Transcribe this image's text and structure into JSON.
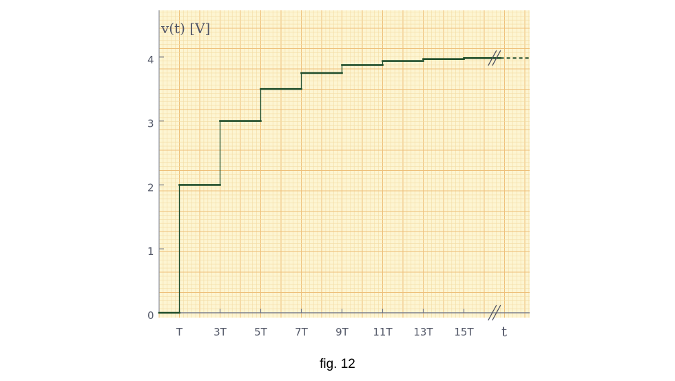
{
  "chart_data": {
    "type": "line",
    "step": true,
    "ylabel": "v(t) [V]",
    "xlabel": "t",
    "ylim": [
      0,
      4.6
    ],
    "xlim": [
      0,
      18.5
    ],
    "yticks": [
      {
        "value": 0,
        "label": "0"
      },
      {
        "value": 1,
        "label": "1"
      },
      {
        "value": 2,
        "label": "2"
      },
      {
        "value": 3,
        "label": "3"
      },
      {
        "value": 4,
        "label": "4"
      }
    ],
    "xticks": [
      {
        "value": 1,
        "label": "T"
      },
      {
        "value": 3,
        "label": "3T"
      },
      {
        "value": 5,
        "label": "5T"
      },
      {
        "value": 7,
        "label": "7T"
      },
      {
        "value": 9,
        "label": "9T"
      },
      {
        "value": 11,
        "label": "11T"
      },
      {
        "value": 13,
        "label": "13T"
      },
      {
        "value": 15,
        "label": "15T"
      }
    ],
    "series": [
      {
        "color": "#1f4d2b",
        "points": [
          {
            "t": 0,
            "v": 0
          },
          {
            "t": 1,
            "v": 0
          },
          {
            "t": 1,
            "v": 2
          },
          {
            "t": 3,
            "v": 2
          },
          {
            "t": 3,
            "v": 3
          },
          {
            "t": 5,
            "v": 3
          },
          {
            "t": 5,
            "v": 3.5
          },
          {
            "t": 7,
            "v": 3.5
          },
          {
            "t": 7,
            "v": 3.75
          },
          {
            "t": 9,
            "v": 3.75
          },
          {
            "t": 9,
            "v": 3.875
          },
          {
            "t": 11,
            "v": 3.875
          },
          {
            "t": 11,
            "v": 3.9375
          },
          {
            "t": 13,
            "v": 3.9375
          },
          {
            "t": 13,
            "v": 3.96875
          },
          {
            "t": 15,
            "v": 3.96875
          },
          {
            "t": 15,
            "v": 3.984
          },
          {
            "t": 16.8,
            "v": 3.984
          }
        ],
        "continuation_dashed_to": 18.3,
        "asymptote": 4
      }
    ],
    "axis_break_at": 16.5,
    "grid": true,
    "background": "#fdf5d2",
    "grid_color_minor": "#f3dca4",
    "grid_color_major": "#eec07a"
  },
  "figure": {
    "caption": "fig. 12"
  }
}
